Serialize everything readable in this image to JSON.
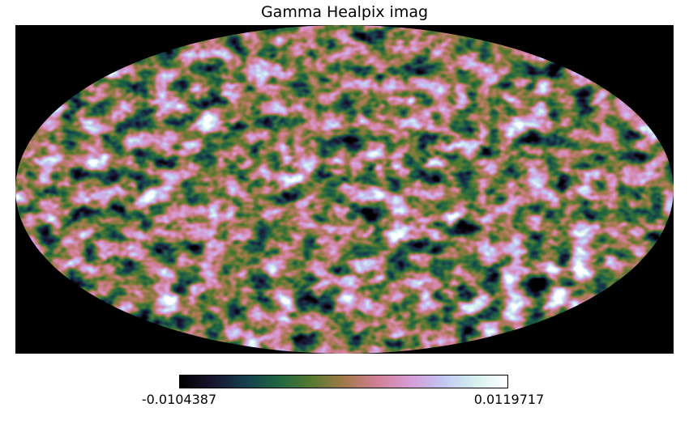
{
  "chart_data": {
    "type": "heatmap",
    "projection": "mollweide",
    "title": "Gamma Healpix imag",
    "colorbar": {
      "min_label": "-0.0104387",
      "max_label": "0.0119717",
      "min": -0.0104387,
      "max": 0.0119717,
      "orientation": "horizontal",
      "placement": "bottom"
    },
    "colormap": "cubehelix",
    "colormap_stops": [
      "#000000",
      "#1a1530",
      "#163d4e",
      "#1f6642",
      "#54792f",
      "#a07949",
      "#d07e93",
      "#d79bd5",
      "#c2c4f2",
      "#d4f0ee",
      "#ffffff"
    ],
    "background_color": "#000000"
  }
}
